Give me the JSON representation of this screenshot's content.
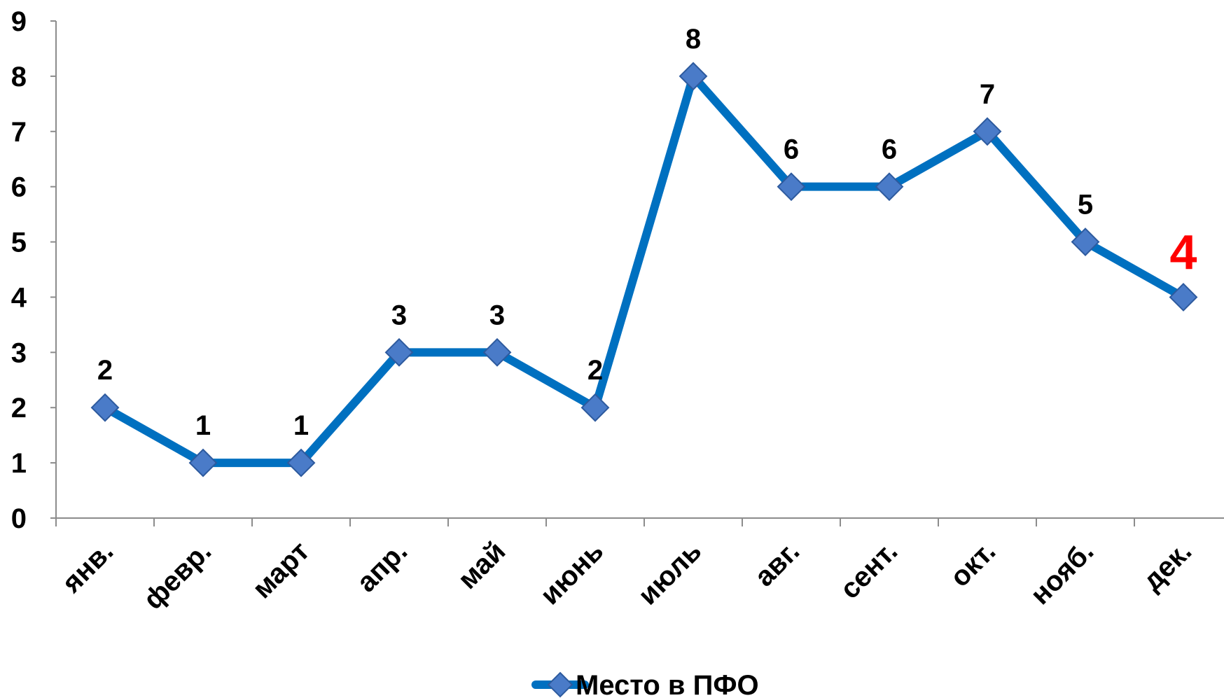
{
  "chart_data": {
    "type": "line",
    "categories": [
      "янв.",
      "февр.",
      "март",
      "апр.",
      "май",
      "июнь",
      "июль",
      "авг.",
      "сент.",
      "окт.",
      "нояб.",
      "дек."
    ],
    "series": [
      {
        "name": "Место в ПФО",
        "values": [
          2,
          1,
          1,
          3,
          3,
          2,
          8,
          6,
          6,
          7,
          5,
          4
        ],
        "color": "#0070c0"
      }
    ],
    "highlight": {
      "index": 11,
      "color": "#ff0000"
    },
    "yticks": [
      "0",
      "1",
      "2",
      "3",
      "4",
      "5",
      "6",
      "7",
      "8",
      "9"
    ],
    "ylim": [
      0,
      9
    ],
    "grid": false,
    "legend": "bottom",
    "marker_color": "#4a7bc8"
  }
}
